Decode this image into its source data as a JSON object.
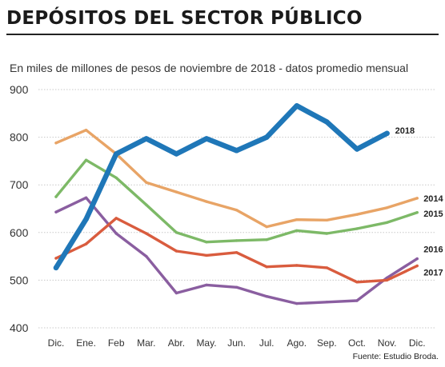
{
  "title": "DEPÓSITOS DEL SECTOR PÚBLICO",
  "subtitle": "En miles de millones de pesos de noviembre de 2018 - datos promedio mensual",
  "source": "Fuente: Estudio Broda.",
  "chart_data": {
    "type": "line",
    "categories": [
      "Dic.",
      "Ene.",
      "Feb",
      "Mar.",
      "Abr.",
      "May.",
      "Jun.",
      "Jul.",
      "Ago.",
      "Sep.",
      "Oct.",
      "Nov.",
      "Dic."
    ],
    "ylim": [
      400,
      900
    ],
    "yticks": [
      400,
      500,
      600,
      700,
      800,
      900
    ],
    "grid": true,
    "legend": "inline-right",
    "series": [
      {
        "name": "2014",
        "color": "#e8a466",
        "values": [
          788,
          815,
          765,
          705,
          685,
          665,
          647,
          612,
          627,
          626,
          638,
          652,
          672
        ]
      },
      {
        "name": "2015",
        "color": "#7db967",
        "values": [
          675,
          752,
          715,
          658,
          600,
          580,
          583,
          585,
          604,
          598,
          608,
          621,
          642
        ]
      },
      {
        "name": "2016",
        "color": "#8a5ea0",
        "values": [
          643,
          673,
          598,
          550,
          473,
          490,
          485,
          466,
          451,
          454,
          457,
          505,
          545
        ]
      },
      {
        "name": "2017",
        "color": "#d95c3e",
        "values": [
          546,
          576,
          630,
          598,
          561,
          552,
          558,
          528,
          531,
          526,
          496,
          500,
          530
        ]
      },
      {
        "name": "2018",
        "color": "#1f77b8",
        "values": [
          526,
          628,
          765,
          797,
          765,
          797,
          772,
          800,
          866,
          832,
          775,
          808,
          null
        ]
      }
    ]
  }
}
